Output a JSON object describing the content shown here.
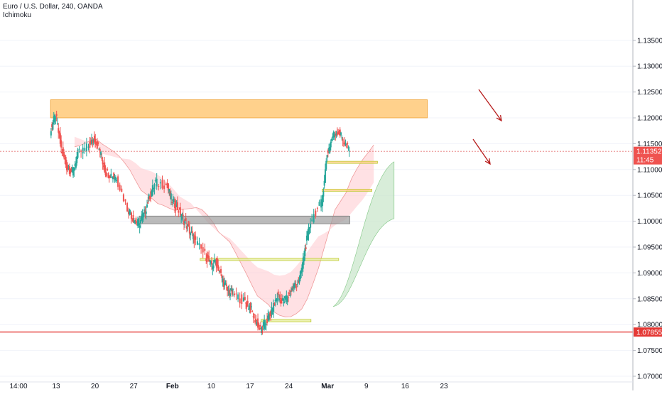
{
  "header": {
    "symbol_line": "Euro / U.S. Dollar, 240, OANDA",
    "indicator": "Ichimoku"
  },
  "colors": {
    "bull": "#26a69a",
    "bear": "#ef5350",
    "kumo_bull": "#c8e6c9",
    "kumo_bear": "#ffcdd2",
    "zone_orange": "#ffc266",
    "zone_gray": "#9e9e9e",
    "zone_yellow": "#e6ee9c",
    "support_red": "#e53935",
    "price_line": "#e57373",
    "arrow": "#b71c1c"
  },
  "chart_data": {
    "type": "candlestick",
    "title": "Euro / U.S. Dollar, 240, OANDA",
    "indicator": "Ichimoku",
    "ylim": [
      1.07,
      1.136
    ],
    "y_ticks": [
      "1.13500",
      "1.13000",
      "1.12500",
      "1.12000",
      "1.11500",
      "1.11000",
      "1.10500",
      "1.10000",
      "1.09500",
      "1.09000",
      "1.08500",
      "1.08000",
      "1.07500",
      "1.07000"
    ],
    "x_ticks": [
      "14:00",
      "13",
      "20",
      "27",
      "Feb",
      "10",
      "17",
      "24",
      "Mar",
      "9",
      "16",
      "23"
    ],
    "current_price": "1.11352",
    "current_time_badge": "11:45",
    "support_level": "1.07855",
    "close_path": [
      {
        "date": "Jan 12",
        "price": 1.1175
      },
      {
        "date": "Jan 13",
        "price": 1.1205
      },
      {
        "date": "Jan 14",
        "price": 1.114
      },
      {
        "date": "Jan 15",
        "price": 1.1105
      },
      {
        "date": "Jan 16",
        "price": 1.1095
      },
      {
        "date": "Jan 17",
        "price": 1.113
      },
      {
        "date": "Jan 19",
        "price": 1.1145
      },
      {
        "date": "Jan 20",
        "price": 1.116
      },
      {
        "date": "Jan 21",
        "price": 1.1135
      },
      {
        "date": "Jan 22",
        "price": 1.1095
      },
      {
        "date": "Jan 23",
        "price": 1.109
      },
      {
        "date": "Jan 24",
        "price": 1.1085
      },
      {
        "date": "Jan 26",
        "price": 1.1025
      },
      {
        "date": "Jan 27",
        "price": 1.1005
      },
      {
        "date": "Jan 28",
        "price": 1.0995
      },
      {
        "date": "Jan 29",
        "price": 1.1015
      },
      {
        "date": "Jan 30",
        "price": 1.105
      },
      {
        "date": "Jan 31",
        "price": 1.1075
      },
      {
        "date": "Feb 2",
        "price": 1.107
      },
      {
        "date": "Feb 3",
        "price": 1.104
      },
      {
        "date": "Feb 4",
        "price": 1.1025
      },
      {
        "date": "Feb 5",
        "price": 1.1005
      },
      {
        "date": "Feb 6",
        "price": 1.0985
      },
      {
        "date": "Feb 7",
        "price": 1.0965
      },
      {
        "date": "Feb 9",
        "price": 1.0935
      },
      {
        "date": "Feb 10",
        "price": 1.0915
      },
      {
        "date": "Feb 11",
        "price": 1.092
      },
      {
        "date": "Feb 12",
        "price": 1.089
      },
      {
        "date": "Feb 13",
        "price": 1.0865
      },
      {
        "date": "Feb 14",
        "price": 1.086
      },
      {
        "date": "Feb 16",
        "price": 1.0845
      },
      {
        "date": "Feb 17",
        "price": 1.0835
      },
      {
        "date": "Feb 18",
        "price": 1.081
      },
      {
        "date": "Feb 19",
        "price": 1.079
      },
      {
        "date": "Feb 20",
        "price": 1.0805
      },
      {
        "date": "Feb 21",
        "price": 1.0825
      },
      {
        "date": "Feb 22",
        "price": 1.0855
      },
      {
        "date": "Feb 23",
        "price": 1.0845
      },
      {
        "date": "Feb 24",
        "price": 1.0855
      },
      {
        "date": "Feb 25",
        "price": 1.0875
      },
      {
        "date": "Feb 26",
        "price": 1.0885
      },
      {
        "date": "Feb 27",
        "price": 1.0945
      },
      {
        "date": "Feb 28",
        "price": 1.1
      },
      {
        "date": "Mar 1",
        "price": 1.1035
      },
      {
        "date": "Mar 2",
        "price": 1.113
      },
      {
        "date": "Mar 3",
        "price": 1.1165
      },
      {
        "date": "Mar 4",
        "price": 1.1175
      },
      {
        "date": "Mar 5",
        "price": 1.1155
      },
      {
        "date": "Mar 6",
        "price": 1.1135
      }
    ],
    "zones": [
      {
        "kind": "resistance",
        "from_date": "Jan 12",
        "to_date": "Mar 20",
        "low": 1.12,
        "high": 1.1235
      },
      {
        "kind": "level",
        "from_date": "Mar 2",
        "to_date": "Mar 11",
        "low": 1.1112,
        "high": 1.1116
      },
      {
        "kind": "level",
        "from_date": "Mar 1",
        "to_date": "Mar 10",
        "low": 1.1058,
        "high": 1.1062
      },
      {
        "kind": "range",
        "from_date": "Jan 28",
        "to_date": "Mar 6",
        "low": 1.0995,
        "high": 1.101
      },
      {
        "kind": "level",
        "from_date": "Feb 8",
        "to_date": "Mar 4",
        "low": 1.0924,
        "high": 1.0928
      },
      {
        "kind": "level",
        "from_date": "Feb 19",
        "to_date": "Feb 28",
        "low": 1.0805,
        "high": 1.081
      }
    ]
  }
}
